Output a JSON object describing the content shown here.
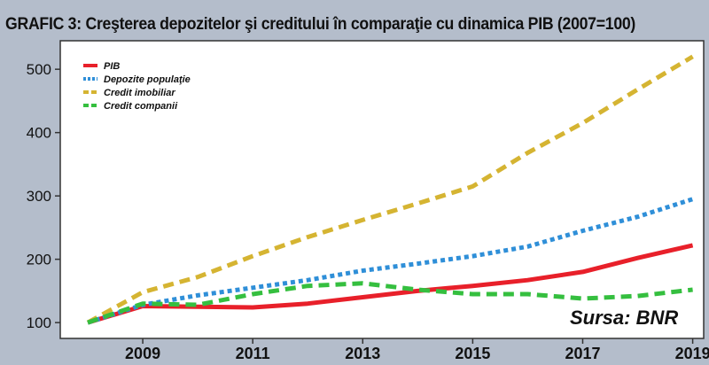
{
  "chart_data": {
    "type": "line",
    "title": "GRAFIC 3: Creşterea depozitelor şi creditului în comparaţie cu dinamica PIB (2007=100)",
    "x": [
      2008,
      2009,
      2010,
      2011,
      2012,
      2013,
      2014,
      2015,
      2016,
      2017,
      2018,
      2019
    ],
    "x_tick_labels": [
      "2009",
      "2011",
      "2013",
      "2015",
      "2017",
      "2019"
    ],
    "y_tick_labels": [
      "100",
      "200",
      "300",
      "400",
      "500"
    ],
    "ylim": [
      75,
      545
    ],
    "xlim": [
      2007.5,
      2019.2
    ],
    "grid": false,
    "legend_position": "top-left",
    "series": [
      {
        "name": "PIB",
        "color": "#e8202a",
        "dash": "solid",
        "values": [
          100,
          126,
          125,
          124,
          130,
          140,
          150,
          158,
          167,
          180,
          202,
          222
        ]
      },
      {
        "name": "Depozite populaţie",
        "color": "#2f8fd8",
        "dash": "dotted",
        "values": [
          100,
          128,
          143,
          155,
          167,
          182,
          193,
          205,
          220,
          245,
          267,
          295
        ]
      },
      {
        "name": "Credit imobiliar",
        "color": "#d5b432",
        "dash": "dashed",
        "values": [
          100,
          148,
          172,
          205,
          235,
          262,
          288,
          315,
          368,
          415,
          468,
          520
        ]
      },
      {
        "name": "Credit companii",
        "color": "#35bf3f",
        "dash": "dashed",
        "values": [
          100,
          130,
          128,
          145,
          158,
          162,
          152,
          145,
          145,
          138,
          142,
          152
        ]
      }
    ],
    "source_note": "Sursa: BNR"
  }
}
